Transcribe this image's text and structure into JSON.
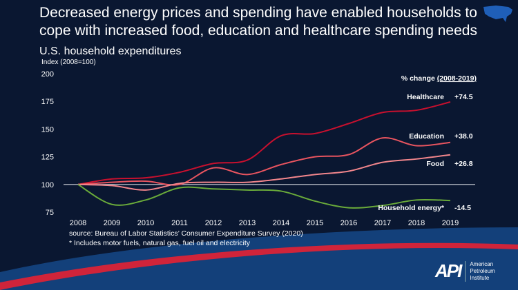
{
  "title": "Decreased energy prices and spending have enabled households to cope with increased food, education and healthcare spending needs",
  "source": "source:  Bureau of Labor Statistics’ Consumer Expenditure Survey (2020)",
  "footnote": "* Includes motor fuels, natural gas, fuel oil and electricity",
  "logo": {
    "mark": "API",
    "text": "American Petroleum Institute"
  },
  "chart_data": {
    "type": "line",
    "title": "U.S. household expenditures",
    "ylabel": "Index (2008=100)",
    "ylim": [
      75,
      200
    ],
    "yticks": [
      75,
      100,
      125,
      150,
      175,
      200
    ],
    "x": [
      2008,
      2009,
      2010,
      2011,
      2012,
      2013,
      2014,
      2015,
      2016,
      2017,
      2018,
      2019
    ],
    "reference_line": 100,
    "change_header": "% change ",
    "change_period": "(2008-2019)",
    "series": [
      {
        "name": "Healthcare",
        "change": "+74.5",
        "color": "#c8102e",
        "values": [
          100,
          105,
          106,
          111,
          119,
          122,
          144,
          146,
          155,
          165,
          167,
          174.5
        ]
      },
      {
        "name": "Education",
        "change": "+38.0",
        "color": "#e8545f",
        "values": [
          100,
          102,
          103,
          100,
          115,
          109,
          118,
          125,
          127,
          142,
          135,
          138
        ]
      },
      {
        "name": "Food",
        "change": "+26.8",
        "color": "#f2868c",
        "values": [
          100,
          99,
          95,
          101,
          102,
          102,
          105,
          109,
          112,
          120,
          123,
          126.8
        ]
      },
      {
        "name": "Household energy*",
        "change": "-14.5",
        "color": "#6aab3a",
        "values": [
          100,
          82,
          86,
          97,
          96,
          95,
          94,
          85,
          79,
          81,
          86,
          85.5
        ]
      }
    ]
  }
}
